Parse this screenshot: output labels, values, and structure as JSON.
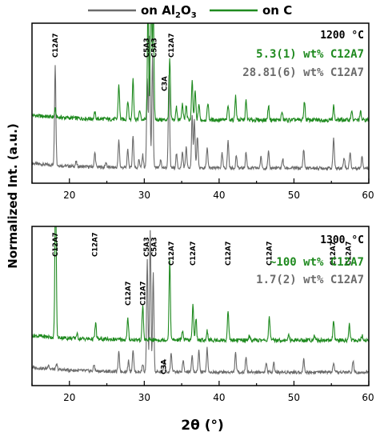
{
  "colors": {
    "al2o3": "#6b6b6b",
    "carbon": "#1f8a1f"
  },
  "legend": {
    "entries": [
      {
        "label_prefix": "on Al",
        "sub1": "2",
        "mid": "O",
        "sub2": "3",
        "color": "#6b6b6b"
      },
      {
        "label": "on C",
        "color": "#1f8a1f"
      }
    ]
  },
  "axes": {
    "ylabel": "Normalized Int. (a.u.)",
    "xlabel": "2θ (°)"
  },
  "chart_data": [
    {
      "type": "line",
      "temperature_label": "1200 °C",
      "wt_labels": [
        {
          "text": "5.3(1) wt% C12A7",
          "color": "#1f8a1f"
        },
        {
          "text": "28.81(6) wt% C12A7",
          "color": "#6b6b6b"
        }
      ],
      "xlim": [
        15,
        60
      ],
      "xticks": [
        20,
        30,
        40,
        50,
        60
      ],
      "grid": false,
      "series": [
        {
          "name": "on Al2O3",
          "baseline": 0.09,
          "peaks": [
            [
              18.1,
              0.62
            ],
            [
              20.9,
              0.03
            ],
            [
              23.4,
              0.09
            ],
            [
              24.9,
              0.03
            ],
            [
              26.6,
              0.17
            ],
            [
              27.8,
              0.11
            ],
            [
              28.5,
              0.2
            ],
            [
              29.3,
              0.05
            ],
            [
              29.8,
              0.08
            ],
            [
              30.4,
              0.55
            ],
            [
              30.7,
              0.82
            ],
            [
              31.1,
              0.7
            ],
            [
              32.2,
              0.05
            ],
            [
              33.3,
              0.58
            ],
            [
              34.3,
              0.09
            ],
            [
              35.1,
              0.1
            ],
            [
              35.6,
              0.13
            ],
            [
              36.4,
              0.32
            ],
            [
              36.7,
              0.3
            ],
            [
              37.1,
              0.2
            ],
            [
              38.4,
              0.13
            ],
            [
              40.4,
              0.09
            ],
            [
              41.2,
              0.17
            ],
            [
              42.3,
              0.08
            ],
            [
              43.6,
              0.1
            ],
            [
              45.6,
              0.07
            ],
            [
              46.6,
              0.1
            ],
            [
              48.5,
              0.06
            ],
            [
              51.3,
              0.12
            ],
            [
              55.3,
              0.19
            ],
            [
              56.7,
              0.07
            ],
            [
              57.5,
              0.1
            ],
            [
              59.1,
              0.08
            ]
          ]
        },
        {
          "name": "on C",
          "baseline": 0.39,
          "peaks": [
            [
              18.1,
              0.05
            ],
            [
              23.4,
              0.04
            ],
            [
              26.6,
              0.22
            ],
            [
              27.8,
              0.12
            ],
            [
              28.5,
              0.26
            ],
            [
              29.4,
              0.06
            ],
            [
              30.5,
              0.7
            ],
            [
              30.9,
              0.98
            ],
            [
              31.2,
              0.75
            ],
            [
              33.4,
              0.38
            ],
            [
              34.3,
              0.08
            ],
            [
              35.1,
              0.1
            ],
            [
              35.6,
              0.09
            ],
            [
              36.4,
              0.24
            ],
            [
              36.8,
              0.18
            ],
            [
              37.3,
              0.1
            ],
            [
              38.5,
              0.11
            ],
            [
              41.2,
              0.09
            ],
            [
              42.2,
              0.15
            ],
            [
              43.6,
              0.12
            ],
            [
              46.6,
              0.09
            ],
            [
              48.4,
              0.05
            ],
            [
              51.4,
              0.12
            ],
            [
              55.3,
              0.09
            ],
            [
              57.7,
              0.06
            ],
            [
              58.9,
              0.05
            ]
          ]
        }
      ],
      "annotations": [
        {
          "text": "C12A7",
          "x": 18.1
        },
        {
          "text": "C5A3",
          "x": 30.3
        },
        {
          "text": "C5A3",
          "x": 31.3
        },
        {
          "text": "C3A",
          "x": 32.7
        },
        {
          "text": "C12A7",
          "x": 33.6
        }
      ]
    },
    {
      "type": "line",
      "temperature_label": "1300 °C",
      "wt_labels": [
        {
          "text": "~100 wt% C12A7",
          "color": "#1f8a1f"
        },
        {
          "text": "1.7(2) wt% C12A7",
          "color": "#6b6b6b"
        }
      ],
      "xlim": [
        15,
        60
      ],
      "xticks": [
        20,
        30,
        40,
        50,
        60
      ],
      "grid": false,
      "series": [
        {
          "name": "on Al2O3",
          "baseline": 0.08,
          "peaks": [
            [
              17.2,
              0.03
            ],
            [
              18.3,
              0.03
            ],
            [
              23.3,
              0.04
            ],
            [
              26.6,
              0.12
            ],
            [
              27.9,
              0.07
            ],
            [
              28.5,
              0.14
            ],
            [
              29.8,
              0.05
            ],
            [
              30.4,
              0.7
            ],
            [
              30.8,
              0.88
            ],
            [
              31.2,
              0.62
            ],
            [
              32.7,
              0.08
            ],
            [
              33.6,
              0.12
            ],
            [
              35.2,
              0.07
            ],
            [
              36.4,
              0.1
            ],
            [
              37.3,
              0.14
            ],
            [
              38.4,
              0.15
            ],
            [
              42.2,
              0.12
            ],
            [
              43.6,
              0.1
            ],
            [
              46.3,
              0.06
            ],
            [
              47.3,
              0.06
            ],
            [
              51.3,
              0.08
            ],
            [
              55.3,
              0.05
            ],
            [
              57.9,
              0.07
            ]
          ]
        },
        {
          "name": "on C",
          "baseline": 0.28,
          "peaks": [
            [
              18.15,
              0.99
            ],
            [
              21.0,
              0.03
            ],
            [
              23.5,
              0.1
            ],
            [
              27.8,
              0.13
            ],
            [
              29.8,
              0.22
            ],
            [
              33.4,
              0.5
            ],
            [
              35.1,
              0.06
            ],
            [
              36.5,
              0.22
            ],
            [
              36.9,
              0.14
            ],
            [
              38.4,
              0.06
            ],
            [
              41.2,
              0.19
            ],
            [
              44.0,
              0.03
            ],
            [
              46.7,
              0.15
            ],
            [
              49.3,
              0.03
            ],
            [
              52.7,
              0.03
            ],
            [
              55.3,
              0.12
            ],
            [
              57.4,
              0.1
            ],
            [
              59.1,
              0.03
            ]
          ]
        }
      ],
      "annotations": [
        {
          "text": "C12A7",
          "x": 18.1
        },
        {
          "text": "C12A7",
          "x": 23.4
        },
        {
          "text": "C12A7",
          "x": 27.8
        },
        {
          "text": "C12A7",
          "x": 29.8
        },
        {
          "text": "C5A3",
          "x": 30.3
        },
        {
          "text": "C5A3",
          "x": 31.3
        },
        {
          "text": "C3A",
          "x": 32.6
        },
        {
          "text": "C12A7",
          "x": 33.6
        },
        {
          "text": "C12A7",
          "x": 36.5
        },
        {
          "text": "C12A7",
          "x": 41.2
        },
        {
          "text": "C12A7",
          "x": 46.7
        },
        {
          "text": "C12A7",
          "x": 55.2
        },
        {
          "text": "C12A7",
          "x": 57.3
        }
      ]
    }
  ]
}
